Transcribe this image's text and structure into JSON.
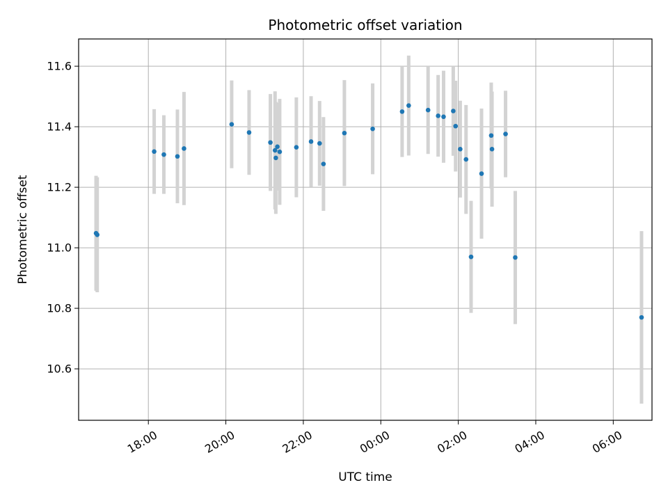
{
  "chart_data": {
    "type": "scatter",
    "title": "Photometric offset variation",
    "xlabel": "UTC time",
    "ylabel": "Photometric offset",
    "x_unit": "hours_utc_continuous",
    "xlim": [
      16.2,
      31.0
    ],
    "ylim": [
      10.43,
      11.69
    ],
    "xticks": [
      18,
      20,
      22,
      24,
      26,
      28,
      30
    ],
    "xtick_labels": [
      "18:00",
      "20:00",
      "22:00",
      "00:00",
      "02:00",
      "04:00",
      "06:00"
    ],
    "yticks": [
      10.6,
      10.8,
      11.0,
      11.2,
      11.4,
      11.6
    ],
    "ytick_labels": [
      "10.6",
      "10.8",
      "11.0",
      "11.2",
      "11.4",
      "11.6"
    ],
    "grid": true,
    "colors": {
      "points": "#1f77b4",
      "errorbars": "#d3d3d3",
      "grid": "#b0b0b0"
    },
    "points": [
      {
        "x": 16.65,
        "y": 11.048,
        "err": 0.19
      },
      {
        "x": 16.68,
        "y": 11.043,
        "err": 0.19
      },
      {
        "x": 18.15,
        "y": 11.318,
        "err": 0.14
      },
      {
        "x": 18.4,
        "y": 11.308,
        "err": 0.13
      },
      {
        "x": 18.75,
        "y": 11.302,
        "err": 0.155
      },
      {
        "x": 18.92,
        "y": 11.328,
        "err": 0.187
      },
      {
        "x": 20.15,
        "y": 11.408,
        "err": 0.145
      },
      {
        "x": 20.6,
        "y": 11.381,
        "err": 0.14
      },
      {
        "x": 21.15,
        "y": 11.348,
        "err": 0.16
      },
      {
        "x": 21.27,
        "y": 11.322,
        "err": 0.195
      },
      {
        "x": 21.29,
        "y": 11.297,
        "err": 0.185
      },
      {
        "x": 21.33,
        "y": 11.334,
        "err": 0.145
      },
      {
        "x": 21.39,
        "y": 11.317,
        "err": 0.175
      },
      {
        "x": 21.82,
        "y": 11.332,
        "err": 0.165
      },
      {
        "x": 22.2,
        "y": 11.351,
        "err": 0.15
      },
      {
        "x": 22.42,
        "y": 11.345,
        "err": 0.14
      },
      {
        "x": 22.52,
        "y": 11.277,
        "err": 0.155
      },
      {
        "x": 23.06,
        "y": 11.379,
        "err": 0.175
      },
      {
        "x": 23.79,
        "y": 11.393,
        "err": 0.15
      },
      {
        "x": 24.55,
        "y": 11.45,
        "err": 0.15
      },
      {
        "x": 24.72,
        "y": 11.47,
        "err": 0.165
      },
      {
        "x": 25.22,
        "y": 11.455,
        "err": 0.145
      },
      {
        "x": 25.48,
        "y": 11.436,
        "err": 0.135
      },
      {
        "x": 25.62,
        "y": 11.433,
        "err": 0.152
      },
      {
        "x": 25.87,
        "y": 11.452,
        "err": 0.148
      },
      {
        "x": 25.93,
        "y": 11.402,
        "err": 0.15
      },
      {
        "x": 26.05,
        "y": 11.326,
        "err": 0.16
      },
      {
        "x": 26.2,
        "y": 11.292,
        "err": 0.18
      },
      {
        "x": 26.33,
        "y": 10.97,
        "err": 0.185
      },
      {
        "x": 26.6,
        "y": 11.245,
        "err": 0.215
      },
      {
        "x": 26.85,
        "y": 11.371,
        "err": 0.175
      },
      {
        "x": 26.87,
        "y": 11.326,
        "err": 0.19
      },
      {
        "x": 27.22,
        "y": 11.376,
        "err": 0.143
      },
      {
        "x": 27.47,
        "y": 10.968,
        "err": 0.22
      },
      {
        "x": 30.73,
        "y": 10.77,
        "err": 0.285
      }
    ]
  }
}
